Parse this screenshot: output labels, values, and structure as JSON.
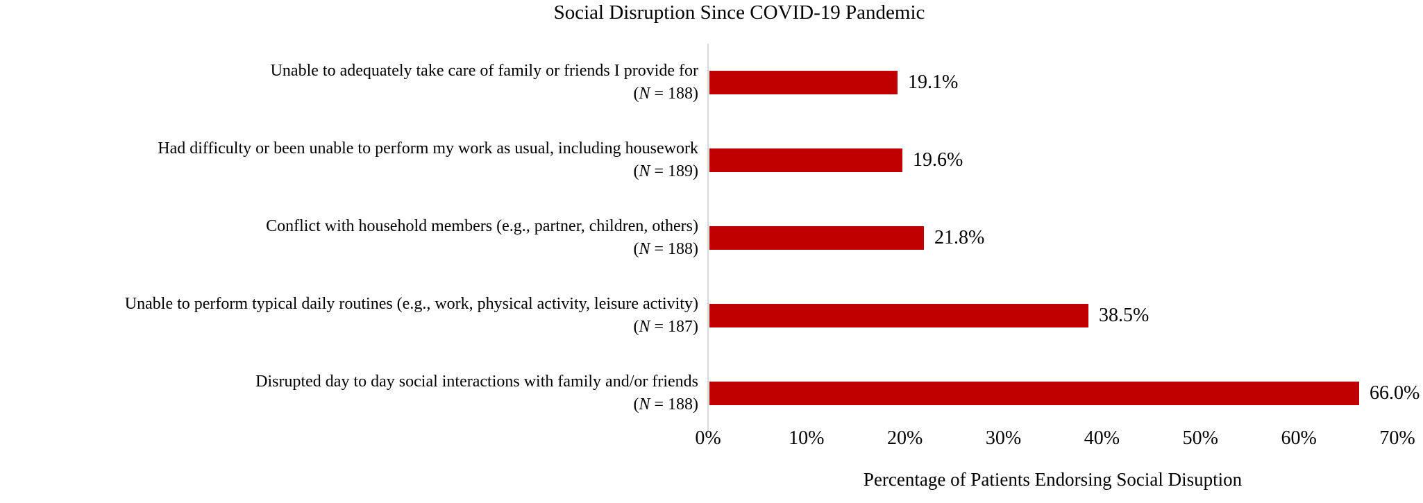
{
  "chart_data": {
    "type": "bar",
    "orientation": "horizontal",
    "title": "Social Disruption Since COVID-19 Pandemic",
    "xlabel": "Percentage of Patients Endorsing Social Disuption",
    "xlim": [
      0,
      70
    ],
    "x_tick_values": [
      0,
      10,
      20,
      30,
      40,
      50,
      60,
      70
    ],
    "x_tick_labels": [
      "0%",
      "10%",
      "20%",
      "30%",
      "40%",
      "50%",
      "60%",
      "70%"
    ],
    "grid": false,
    "legend": false,
    "bar_color": "#c00000",
    "axis_line_color": "#d9d9d9",
    "categories": [
      {
        "label": "Unable to adequately take care of family or friends I provide for",
        "n": 188
      },
      {
        "label": "Had difficulty or been unable to perform my work as usual, including housework",
        "n": 189
      },
      {
        "label": "Conflict with household members (e.g., partner, children, others)",
        "n": 188
      },
      {
        "label": "Unable to perform typical daily routines (e.g., work, physical activity, leisure activity)",
        "n": 187
      },
      {
        "label": "Disrupted day to day social interactions with family and/or friends",
        "n": 188
      }
    ],
    "values": [
      19.1,
      19.6,
      21.8,
      38.5,
      66.0
    ],
    "value_labels": [
      "19.1%",
      "19.6%",
      "21.8%",
      "38.5%",
      "66.0%"
    ]
  }
}
